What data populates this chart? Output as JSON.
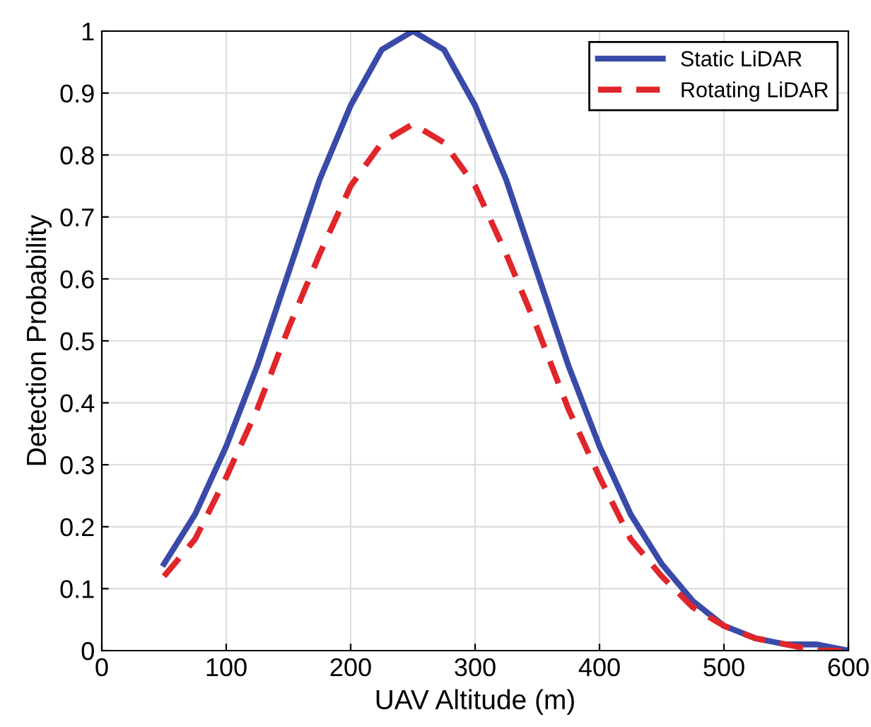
{
  "chart_data": {
    "type": "line",
    "xlabel": "UAV Altitude (m)",
    "ylabel": "Detection Probability",
    "x": [
      50,
      75,
      100,
      125,
      150,
      175,
      200,
      225,
      250,
      275,
      300,
      325,
      350,
      375,
      400,
      425,
      450,
      475,
      500,
      525,
      550,
      575,
      600
    ],
    "series": [
      {
        "name": "Static LiDAR",
        "color": "#3a4aa8",
        "line_style": "solid",
        "values": [
          0.14,
          0.22,
          0.33,
          0.46,
          0.61,
          0.76,
          0.88,
          0.97,
          1.0,
          0.97,
          0.88,
          0.76,
          0.61,
          0.46,
          0.33,
          0.22,
          0.14,
          0.08,
          0.04,
          0.02,
          0.01,
          0.01,
          0.0
        ]
      },
      {
        "name": "Rotating LiDAR",
        "color": "#e0262b",
        "line_style": "dashed",
        "values": [
          0.12,
          0.18,
          0.28,
          0.39,
          0.52,
          0.64,
          0.75,
          0.82,
          0.85,
          0.82,
          0.75,
          0.64,
          0.52,
          0.39,
          0.28,
          0.18,
          0.12,
          0.07,
          0.04,
          0.02,
          0.01,
          0.0,
          0.0
        ]
      }
    ],
    "xlim": [
      0,
      600
    ],
    "xticks": [
      0,
      100,
      200,
      300,
      400,
      500,
      600
    ],
    "ylim": [
      0,
      1
    ],
    "yticks": [
      0,
      0.1,
      0.2,
      0.3,
      0.4,
      0.5,
      0.6,
      0.7,
      0.8,
      0.9,
      1
    ],
    "grid": true,
    "legend": "top right",
    "marker": "none"
  }
}
